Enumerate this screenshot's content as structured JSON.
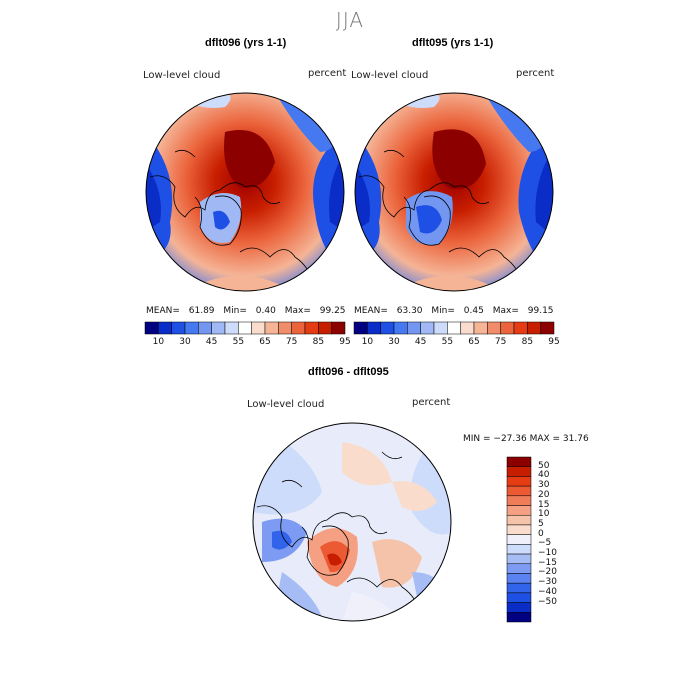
{
  "title": "JJA",
  "panels": [
    {
      "title": "dflt096 (yrs 1-1)",
      "variable": "Low-level cloud",
      "units": "percent",
      "stats": {
        "mean_label": "MEAN=",
        "mean": "61.89",
        "min_label": "Min=",
        "min": "0.40",
        "max_label": "Max=",
        "max": "99.25"
      }
    },
    {
      "title": "dflt095 (yrs 1-1)",
      "variable": "Low-level cloud",
      "units": "percent",
      "stats": {
        "mean_label": "MEAN=",
        "mean": "63.30",
        "min_label": "Min=",
        "min": "0.45",
        "max_label": "Max=",
        "max": "99.15"
      }
    }
  ],
  "diff_panel": {
    "title": "dflt096 - dflt095",
    "variable": "Low-level cloud",
    "units": "percent",
    "stats_text": "MIN = −27.36  MAX =   31.76"
  },
  "colorbar_abs": {
    "colors": [
      "#000080",
      "#0a2dc8",
      "#1e50e6",
      "#4678f0",
      "#7396f0",
      "#a0b9f5",
      "#cddcfa",
      "#ffffff",
      "#fadccd",
      "#f5b496",
      "#f08c69",
      "#eb643c",
      "#e63c14",
      "#c81e00",
      "#8c0000"
    ],
    "tick_labels": [
      "10",
      "30",
      "45",
      "55",
      "65",
      "75",
      "85",
      "95"
    ]
  },
  "colorbar_diff": {
    "colors": [
      "#000080",
      "#0a2dc8",
      "#1e50e6",
      "#3264eb",
      "#5a82f0",
      "#7d9bf2",
      "#a5bcf5",
      "#cddcfa",
      "#f0f0fa",
      "#fadccd",
      "#f5c3aa",
      "#f5a082",
      "#f07d5a",
      "#eb5a32",
      "#e63c14",
      "#c81e00",
      "#8c0000"
    ],
    "tick_labels": [
      "50",
      "40",
      "30",
      "20",
      "15",
      "10",
      "5",
      "0",
      "−5",
      "−10",
      "−15",
      "−20",
      "−30",
      "−40",
      "−50"
    ]
  }
}
